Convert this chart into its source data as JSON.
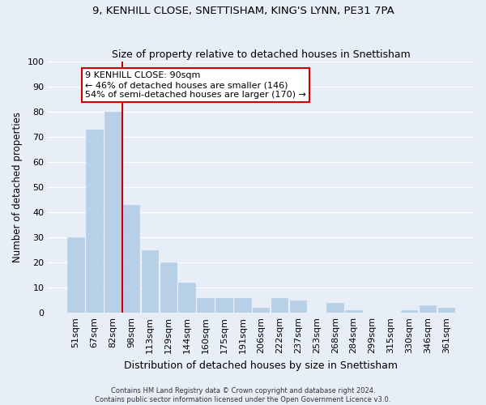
{
  "title": "9, KENHILL CLOSE, SNETTISHAM, KING'S LYNN, PE31 7PA",
  "subtitle": "Size of property relative to detached houses in Snettisham",
  "xlabel": "Distribution of detached houses by size in Snettisham",
  "ylabel": "Number of detached properties",
  "bar_labels": [
    "51sqm",
    "67sqm",
    "82sqm",
    "98sqm",
    "113sqm",
    "129sqm",
    "144sqm",
    "160sqm",
    "175sqm",
    "191sqm",
    "206sqm",
    "222sqm",
    "237sqm",
    "253sqm",
    "268sqm",
    "284sqm",
    "299sqm",
    "315sqm",
    "330sqm",
    "346sqm",
    "361sqm"
  ],
  "bar_values": [
    30,
    73,
    80,
    43,
    25,
    20,
    12,
    6,
    6,
    6,
    2,
    6,
    5,
    0,
    4,
    1,
    0,
    0,
    1,
    3,
    2
  ],
  "bar_color": "#b8cfe8",
  "bar_edge_color": "#b8cfe8",
  "vline_x_index": 2.5,
  "vline_color": "#cc0000",
  "annotation_line1": "9 KENHILL CLOSE: 90sqm",
  "annotation_line2": "← 46% of detached houses are smaller (146)",
  "annotation_line3": "54% of semi-detached houses are larger (170) →",
  "annotation_box_facecolor": "#ffffff",
  "annotation_box_edgecolor": "#cc0000",
  "ylim": [
    0,
    100
  ],
  "yticks": [
    0,
    10,
    20,
    30,
    40,
    50,
    60,
    70,
    80,
    90,
    100
  ],
  "footer_line1": "Contains HM Land Registry data © Crown copyright and database right 2024.",
  "footer_line2": "Contains public sector information licensed under the Open Government Licence v3.0.",
  "background_color": "#e8eef7",
  "grid_color": "#ffffff",
  "title_fontsize": 9.5,
  "subtitle_fontsize": 9.0,
  "xlabel_fontsize": 9.0,
  "ylabel_fontsize": 8.5,
  "tick_fontsize": 8.0,
  "annotation_fontsize": 8.0,
  "footer_fontsize": 6.0
}
